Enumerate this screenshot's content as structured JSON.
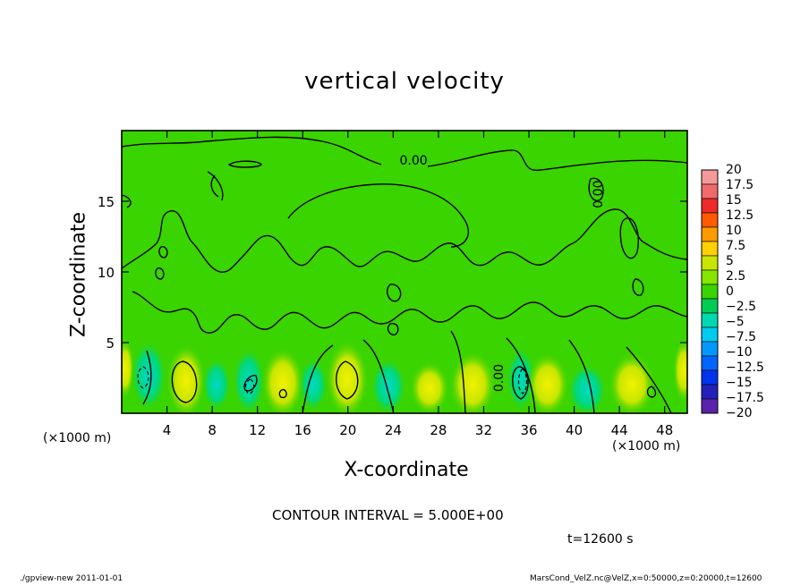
{
  "chart_data": {
    "type": "heatmap",
    "title": "vertical velocity",
    "xlabel": "X-coordinate",
    "ylabel": "Z-coordinate",
    "x_unit_label": "(×1000 m)",
    "xlim": [
      0,
      50
    ],
    "ylim": [
      0,
      20
    ],
    "xticks": [
      4,
      8,
      12,
      16,
      20,
      24,
      28,
      32,
      36,
      40,
      44,
      48
    ],
    "yticks": [
      5,
      10,
      15
    ],
    "contour_labels": [
      {
        "text": "0.00",
        "x": 25.8,
        "y": 17.6
      },
      {
        "text": "0.00",
        "x": 42.5,
        "y": 15.5
      },
      {
        "text": "0.00",
        "x": 33.7,
        "y": 2.5
      }
    ],
    "colorbar": {
      "labels": [
        "20",
        "17.5",
        "15",
        "12.5",
        "10",
        "7.5",
        "5",
        "2.5",
        "0",
        "−2.5",
        "−5",
        "−7.5",
        "−10",
        "−12.5",
        "−15",
        "−17.5",
        "−20"
      ],
      "colors": [
        "#f59a9a",
        "#f06a6a",
        "#ee2a2a",
        "#ff5a00",
        "#ff9a00",
        "#ffd000",
        "#c8e600",
        "#86e600",
        "#3ad400",
        "#00cc55",
        "#00d8b0",
        "#00ccee",
        "#0099ff",
        "#0066ff",
        "#0033ee",
        "#2222bb",
        "#5a22aa"
      ]
    },
    "contour_interval": "CONTOUR INTERVAL = 5.000E+00",
    "time": "t=12600 s",
    "accent_colors": {
      "field_base": "#3ad400",
      "updraft": "#c8e600",
      "strong_updraft": "#e6ee00",
      "downdraft": "#00dca0"
    }
  },
  "footer": {
    "left": "./gpview-new  2011-01-01",
    "right": "MarsCond_VelZ.nc@VelZ,x=0:50000,z=0:20000,t=12600"
  }
}
